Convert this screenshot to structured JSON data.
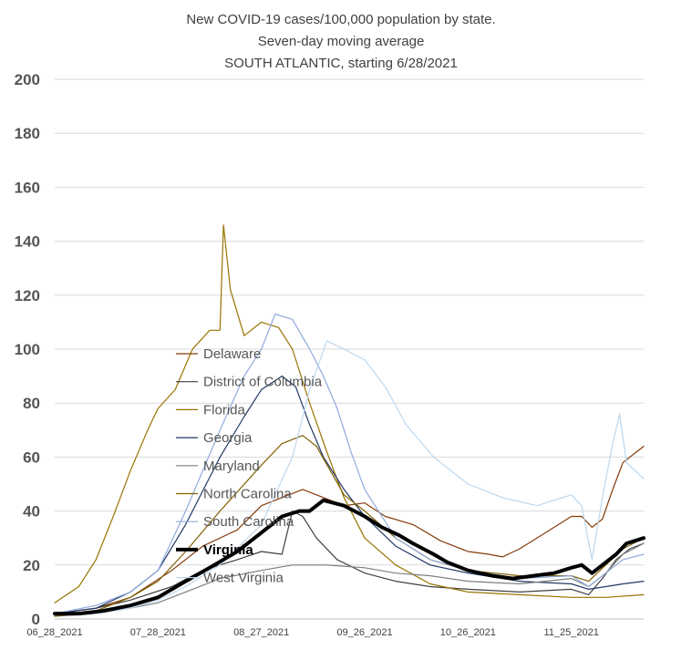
{
  "chart_data": {
    "type": "line",
    "title": [
      "New COVID-19 cases/100,000 population by state.",
      "Seven-day moving average",
      "SOUTH ATLANTIC, starting 6/28/2021"
    ],
    "xlabel": "",
    "ylabel": "",
    "ylim": [
      0,
      200
    ],
    "yticks": [
      0,
      20,
      40,
      60,
      80,
      100,
      120,
      140,
      160,
      180,
      200
    ],
    "x_start": "2021-06-28",
    "x_end": "2021-12-16",
    "x_tick_dates": [
      "2021-06-28",
      "2021-07-28",
      "2021-08-27",
      "2021-09-26",
      "2021-10-26",
      "2021-11-25"
    ],
    "xtick_labels": [
      "06_28_2021",
      "07_28_2021",
      "08_27_2021",
      "09_26_2021",
      "10_26_2021",
      "11_25_2021"
    ],
    "grid": true,
    "legend_position": "inside-left",
    "series": [
      {
        "name": "Delaware",
        "color": "#843c0c",
        "width": 1.2,
        "points": [
          [
            "2021-06-28",
            2
          ],
          [
            "2021-07-10",
            4
          ],
          [
            "2021-07-20",
            8
          ],
          [
            "2021-08-01",
            18
          ],
          [
            "2021-08-10",
            27
          ],
          [
            "2021-08-20",
            33
          ],
          [
            "2021-08-27",
            42
          ],
          [
            "2021-09-02",
            45
          ],
          [
            "2021-09-08",
            48
          ],
          [
            "2021-09-14",
            45
          ],
          [
            "2021-09-20",
            42
          ],
          [
            "2021-09-26",
            43
          ],
          [
            "2021-10-02",
            38
          ],
          [
            "2021-10-10",
            35
          ],
          [
            "2021-10-18",
            29
          ],
          [
            "2021-10-26",
            25
          ],
          [
            "2021-11-01",
            24
          ],
          [
            "2021-11-05",
            23
          ],
          [
            "2021-11-10",
            26
          ],
          [
            "2021-11-15",
            30
          ],
          [
            "2021-11-20",
            34
          ],
          [
            "2021-11-25",
            38
          ],
          [
            "2021-11-28",
            38
          ],
          [
            "2021-12-01",
            34
          ],
          [
            "2021-12-04",
            37
          ],
          [
            "2021-12-07",
            48
          ],
          [
            "2021-12-10",
            58
          ],
          [
            "2021-12-13",
            61
          ],
          [
            "2021-12-16",
            64
          ]
        ]
      },
      {
        "name": "District of Columbia",
        "color": "#404040",
        "width": 1.2,
        "points": [
          [
            "2021-06-28",
            2
          ],
          [
            "2021-07-10",
            4
          ],
          [
            "2021-07-20",
            7
          ],
          [
            "2021-08-01",
            12
          ],
          [
            "2021-08-10",
            18
          ],
          [
            "2021-08-20",
            22
          ],
          [
            "2021-08-27",
            25
          ],
          [
            "2021-09-02",
            24
          ],
          [
            "2021-09-05",
            40
          ],
          [
            "2021-09-08",
            38
          ],
          [
            "2021-09-12",
            30
          ],
          [
            "2021-09-18",
            22
          ],
          [
            "2021-09-26",
            17
          ],
          [
            "2021-10-05",
            14
          ],
          [
            "2021-10-15",
            12
          ],
          [
            "2021-10-26",
            11
          ],
          [
            "2021-11-10",
            10
          ],
          [
            "2021-11-25",
            11
          ],
          [
            "2021-11-30",
            9
          ],
          [
            "2021-12-04",
            15
          ],
          [
            "2021-12-08",
            22
          ],
          [
            "2021-12-12",
            26
          ],
          [
            "2021-12-16",
            28
          ]
        ]
      },
      {
        "name": "Florida",
        "color": "#997300",
        "width": 1.2,
        "points": [
          [
            "2021-06-28",
            6
          ],
          [
            "2021-07-05",
            12
          ],
          [
            "2021-07-10",
            22
          ],
          [
            "2021-07-15",
            38
          ],
          [
            "2021-07-20",
            55
          ],
          [
            "2021-07-25",
            70
          ],
          [
            "2021-07-28",
            78
          ],
          [
            "2021-08-02",
            85
          ],
          [
            "2021-08-07",
            100
          ],
          [
            "2021-08-12",
            107
          ],
          [
            "2021-08-15",
            107
          ],
          [
            "2021-08-16",
            146
          ],
          [
            "2021-08-18",
            122
          ],
          [
            "2021-08-22",
            105
          ],
          [
            "2021-08-27",
            110
          ],
          [
            "2021-09-01",
            108
          ],
          [
            "2021-09-05",
            100
          ],
          [
            "2021-09-10",
            80
          ],
          [
            "2021-09-15",
            62
          ],
          [
            "2021-09-20",
            45
          ],
          [
            "2021-09-26",
            30
          ],
          [
            "2021-10-05",
            20
          ],
          [
            "2021-10-15",
            13
          ],
          [
            "2021-10-26",
            10
          ],
          [
            "2021-11-10",
            9
          ],
          [
            "2021-11-25",
            8
          ],
          [
            "2021-12-05",
            8
          ],
          [
            "2021-12-16",
            9
          ]
        ]
      },
      {
        "name": "Georgia",
        "color": "#203864",
        "width": 1.2,
        "points": [
          [
            "2021-06-28",
            2
          ],
          [
            "2021-07-10",
            4
          ],
          [
            "2021-07-20",
            10
          ],
          [
            "2021-07-28",
            18
          ],
          [
            "2021-08-05",
            35
          ],
          [
            "2021-08-15",
            60
          ],
          [
            "2021-08-22",
            75
          ],
          [
            "2021-08-27",
            85
          ],
          [
            "2021-09-02",
            90
          ],
          [
            "2021-09-06",
            86
          ],
          [
            "2021-09-10",
            72
          ],
          [
            "2021-09-14",
            60
          ],
          [
            "2021-09-20",
            48
          ],
          [
            "2021-09-26",
            38
          ],
          [
            "2021-10-05",
            27
          ],
          [
            "2021-10-15",
            20
          ],
          [
            "2021-10-26",
            17
          ],
          [
            "2021-11-10",
            14
          ],
          [
            "2021-11-25",
            13
          ],
          [
            "2021-11-30",
            11
          ],
          [
            "2021-12-05",
            12
          ],
          [
            "2021-12-10",
            13
          ],
          [
            "2021-12-16",
            14
          ]
        ]
      },
      {
        "name": "Maryland",
        "color": "#7f7f7f",
        "width": 1.2,
        "points": [
          [
            "2021-06-28",
            1
          ],
          [
            "2021-07-10",
            2
          ],
          [
            "2021-07-20",
            4
          ],
          [
            "2021-07-28",
            6
          ],
          [
            "2021-08-05",
            10
          ],
          [
            "2021-08-15",
            15
          ],
          [
            "2021-08-27",
            18
          ],
          [
            "2021-09-05",
            20
          ],
          [
            "2021-09-15",
            20
          ],
          [
            "2021-09-26",
            19
          ],
          [
            "2021-10-05",
            17
          ],
          [
            "2021-10-15",
            16
          ],
          [
            "2021-10-26",
            14
          ],
          [
            "2021-11-10",
            13
          ],
          [
            "2021-11-25",
            15
          ],
          [
            "2021-11-30",
            12
          ],
          [
            "2021-12-05",
            17
          ],
          [
            "2021-12-10",
            24
          ],
          [
            "2021-12-16",
            28
          ]
        ]
      },
      {
        "name": "North Carolina",
        "color": "#7f6000",
        "width": 1.2,
        "points": [
          [
            "2021-06-28",
            1
          ],
          [
            "2021-07-10",
            3
          ],
          [
            "2021-07-20",
            8
          ],
          [
            "2021-07-28",
            14
          ],
          [
            "2021-08-05",
            25
          ],
          [
            "2021-08-15",
            40
          ],
          [
            "2021-08-27",
            57
          ],
          [
            "2021-09-02",
            65
          ],
          [
            "2021-09-08",
            68
          ],
          [
            "2021-09-12",
            64
          ],
          [
            "2021-09-16",
            55
          ],
          [
            "2021-09-20",
            46
          ],
          [
            "2021-09-26",
            40
          ],
          [
            "2021-10-05",
            30
          ],
          [
            "2021-10-15",
            22
          ],
          [
            "2021-10-26",
            18
          ],
          [
            "2021-11-10",
            16
          ],
          [
            "2021-11-25",
            16
          ],
          [
            "2021-11-30",
            14
          ],
          [
            "2021-12-05",
            20
          ],
          [
            "2021-12-10",
            26
          ],
          [
            "2021-12-16",
            30
          ]
        ]
      },
      {
        "name": "South Carolina",
        "color": "#8faadc",
        "width": 1.2,
        "points": [
          [
            "2021-06-28",
            2
          ],
          [
            "2021-07-10",
            5
          ],
          [
            "2021-07-20",
            10
          ],
          [
            "2021-07-28",
            18
          ],
          [
            "2021-08-05",
            40
          ],
          [
            "2021-08-15",
            70
          ],
          [
            "2021-08-22",
            90
          ],
          [
            "2021-08-27",
            100
          ],
          [
            "2021-08-31",
            113
          ],
          [
            "2021-09-05",
            111
          ],
          [
            "2021-09-10",
            100
          ],
          [
            "2021-09-14",
            90
          ],
          [
            "2021-09-18",
            78
          ],
          [
            "2021-09-22",
            62
          ],
          [
            "2021-09-26",
            48
          ],
          [
            "2021-10-05",
            30
          ],
          [
            "2021-10-15",
            22
          ],
          [
            "2021-10-26",
            18
          ],
          [
            "2021-11-10",
            15
          ],
          [
            "2021-11-25",
            16
          ],
          [
            "2021-11-30",
            12
          ],
          [
            "2021-12-05",
            17
          ],
          [
            "2021-12-10",
            22
          ],
          [
            "2021-12-16",
            24
          ]
        ]
      },
      {
        "name": "Virginia",
        "color": "#000000",
        "width": 4,
        "points": [
          [
            "2021-06-28",
            2
          ],
          [
            "2021-07-05",
            2
          ],
          [
            "2021-07-12",
            3
          ],
          [
            "2021-07-20",
            5
          ],
          [
            "2021-07-28",
            8
          ],
          [
            "2021-08-05",
            14
          ],
          [
            "2021-08-12",
            19
          ],
          [
            "2021-08-20",
            25
          ],
          [
            "2021-08-27",
            32
          ],
          [
            "2021-09-02",
            38
          ],
          [
            "2021-09-07",
            40
          ],
          [
            "2021-09-10",
            40
          ],
          [
            "2021-09-14",
            44
          ],
          [
            "2021-09-20",
            42
          ],
          [
            "2021-09-26",
            38
          ],
          [
            "2021-10-01",
            34
          ],
          [
            "2021-10-06",
            31
          ],
          [
            "2021-10-10",
            28
          ],
          [
            "2021-10-16",
            24
          ],
          [
            "2021-10-20",
            21
          ],
          [
            "2021-10-26",
            18
          ],
          [
            "2021-11-02",
            16
          ],
          [
            "2021-11-08",
            15
          ],
          [
            "2021-11-14",
            16
          ],
          [
            "2021-11-20",
            17
          ],
          [
            "2021-11-25",
            19
          ],
          [
            "2021-11-28",
            20
          ],
          [
            "2021-12-01",
            17
          ],
          [
            "2021-12-04",
            20
          ],
          [
            "2021-12-08",
            24
          ],
          [
            "2021-12-11",
            28
          ],
          [
            "2021-12-16",
            30
          ]
        ]
      },
      {
        "name": "West Virginia",
        "color": "#bdd7ee",
        "width": 1.2,
        "points": [
          [
            "2021-06-28",
            2
          ],
          [
            "2021-07-10",
            2
          ],
          [
            "2021-07-20",
            4
          ],
          [
            "2021-07-28",
            7
          ],
          [
            "2021-08-05",
            12
          ],
          [
            "2021-08-15",
            20
          ],
          [
            "2021-08-27",
            35
          ],
          [
            "2021-09-05",
            60
          ],
          [
            "2021-09-10",
            85
          ],
          [
            "2021-09-15",
            103
          ],
          [
            "2021-09-20",
            100
          ],
          [
            "2021-09-26",
            96
          ],
          [
            "2021-10-02",
            86
          ],
          [
            "2021-10-08",
            72
          ],
          [
            "2021-10-16",
            60
          ],
          [
            "2021-10-26",
            50
          ],
          [
            "2021-11-05",
            45
          ],
          [
            "2021-11-15",
            42
          ],
          [
            "2021-11-25",
            46
          ],
          [
            "2021-11-28",
            42
          ],
          [
            "2021-12-01",
            22
          ],
          [
            "2021-12-04",
            45
          ],
          [
            "2021-12-07",
            65
          ],
          [
            "2021-12-09",
            76
          ],
          [
            "2021-12-11",
            58
          ],
          [
            "2021-12-16",
            52
          ]
        ]
      }
    ]
  }
}
